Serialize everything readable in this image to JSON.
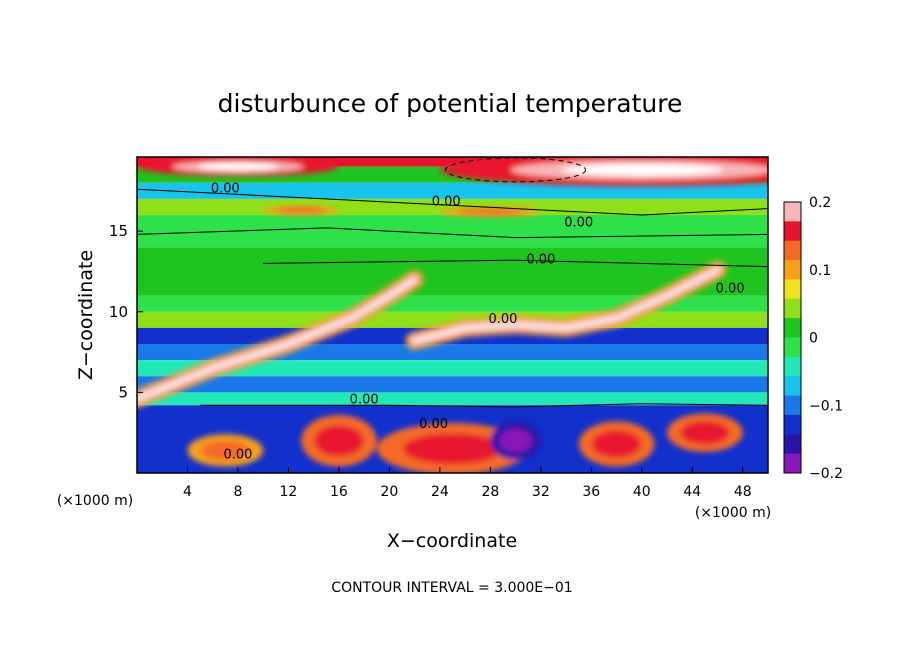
{
  "chart_data": {
    "type": "heatmap",
    "title": "disturbunce of potential temperature",
    "xlabel": "X−coordinate",
    "ylabel": "Z−coordinate",
    "x_unit_left": "(×1000 m)",
    "x_unit_right": "(×1000 m)",
    "xlim": [
      0,
      50
    ],
    "ylim": [
      0,
      19.6
    ],
    "x_ticks": [
      "4",
      "8",
      "12",
      "16",
      "20",
      "24",
      "28",
      "32",
      "36",
      "40",
      "44",
      "48"
    ],
    "y_ticks": [
      "5",
      "10",
      "15"
    ],
    "colorbar": {
      "range": [
        -0.2,
        0.2
      ],
      "tick_labels": [
        "0.2",
        "0.1",
        "0",
        "−0.1",
        "−0.2"
      ],
      "colors": [
        "#f7b6b6",
        "#e8132e",
        "#f46a26",
        "#f6a01c",
        "#f0e21e",
        "#8fe01a",
        "#20c420",
        "#2ee04a",
        "#22e8b8",
        "#18c4ee",
        "#1a78e8",
        "#1230cc",
        "#2a14a8",
        "#8a18b8"
      ]
    },
    "contour_labels": [
      "0.00",
      "0.00",
      "0.00",
      "0.00",
      "0.00",
      "0.00",
      "0.00",
      "0.00",
      "0.00"
    ],
    "contour_interval_text": "CONTOUR INTERVAL = 3.000E−01",
    "bands": [
      {
        "z": [
          19.0,
          19.6
        ],
        "value": 0.15
      },
      {
        "z": [
          18.0,
          19.0
        ],
        "value": 0.02
      },
      {
        "z": [
          17.0,
          18.0
        ],
        "value": -0.06
      },
      {
        "z": [
          16.0,
          17.0
        ],
        "value": 0.05
      },
      {
        "z": [
          14.0,
          16.0
        ],
        "value": 0.0
      },
      {
        "z": [
          11.0,
          14.0
        ],
        "value": 0.02
      },
      {
        "z": [
          10.0,
          11.0
        ],
        "value": -0.02
      },
      {
        "z": [
          9.0,
          10.0
        ],
        "value": 0.03
      },
      {
        "z": [
          8.0,
          9.0
        ],
        "value": -0.12
      },
      {
        "z": [
          7.0,
          8.0
        ],
        "value": -0.09
      },
      {
        "z": [
          6.0,
          7.0
        ],
        "value": -0.04
      },
      {
        "z": [
          5.0,
          6.0
        ],
        "value": -0.1
      },
      {
        "z": [
          4.2,
          5.0
        ],
        "value": -0.03
      },
      {
        "z": [
          0.0,
          4.2
        ],
        "value": -0.12
      }
    ],
    "features": [
      {
        "kind": "blob",
        "x": 40,
        "z": 18.8,
        "rx": 16,
        "rz": 1.0,
        "value": 0.2
      },
      {
        "kind": "blob",
        "x": 8,
        "z": 19.0,
        "rx": 8,
        "rz": 0.6,
        "value": 0.2
      },
      {
        "kind": "blob",
        "x": 28,
        "z": 16.2,
        "rx": 4,
        "rz": 0.3,
        "value": 0.12
      },
      {
        "kind": "blob",
        "x": 13,
        "z": 16.3,
        "rx": 3,
        "rz": 0.3,
        "value": 0.12
      },
      {
        "kind": "streak",
        "points": [
          [
            0,
            4.6
          ],
          [
            6,
            6.5
          ],
          [
            12,
            8.0
          ],
          [
            17,
            9.6
          ],
          [
            20,
            11.0
          ],
          [
            22,
            12.0
          ]
        ],
        "value": 0.18
      },
      {
        "kind": "streak",
        "points": [
          [
            22,
            8.2
          ],
          [
            26,
            9.0
          ],
          [
            30,
            9.2
          ],
          [
            34,
            9.0
          ],
          [
            38,
            9.6
          ],
          [
            42,
            11.0
          ],
          [
            46,
            12.6
          ]
        ],
        "value": 0.18
      },
      {
        "kind": "blob",
        "x": 25,
        "z": 1.5,
        "rx": 6,
        "rz": 1.6,
        "value": 0.16
      },
      {
        "kind": "blob",
        "x": 16,
        "z": 2.0,
        "rx": 3,
        "rz": 1.6,
        "value": 0.17
      },
      {
        "kind": "blob",
        "x": 38,
        "z": 1.8,
        "rx": 3,
        "rz": 1.4,
        "value": 0.15
      },
      {
        "kind": "blob",
        "x": 45,
        "z": 2.5,
        "rx": 3,
        "rz": 1.2,
        "value": 0.17
      },
      {
        "kind": "blob",
        "x": 7,
        "z": 1.4,
        "rx": 3,
        "rz": 1.0,
        "value": 0.12
      },
      {
        "kind": "blob",
        "x": 30,
        "z": 2.0,
        "rx": 2,
        "rz": 1.2,
        "value": -0.18
      }
    ]
  }
}
